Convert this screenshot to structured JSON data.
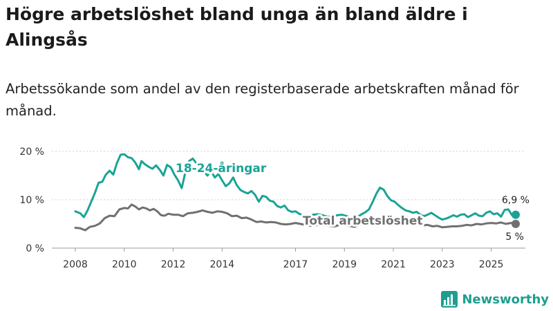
{
  "header": {
    "title": "Högre arbetslöshet bland unga än bland äldre i Alingsås",
    "subtitle": "Arbetssökande som andel av den registerbaserade arbetskraften månad för månad."
  },
  "brand": {
    "name": "Newsworthy",
    "icon": "bar-chart-logo-icon"
  },
  "colors": {
    "youth": "#1aa396",
    "total": "#707070",
    "grid": "#cfcfcf",
    "brand": "#1e9e8f"
  },
  "chart_data": {
    "type": "line",
    "title": "Högre arbetslöshet bland unga än bland äldre i Alingsås",
    "xlabel": "",
    "ylabel": "",
    "ylim": [
      0,
      20
    ],
    "xlim": [
      2007.8,
      2026.6
    ],
    "y_ticks": [
      {
        "value": 0,
        "label": "0 %"
      },
      {
        "value": 10,
        "label": "10 %"
      },
      {
        "value": 20,
        "label": "20 %"
      }
    ],
    "x_ticks": [
      {
        "value": 2008,
        "label": "2008"
      },
      {
        "value": 2010,
        "label": "2010"
      },
      {
        "value": 2012,
        "label": "2012"
      },
      {
        "value": 2014,
        "label": "2014"
      },
      {
        "value": 2017,
        "label": "2017"
      },
      {
        "value": 2019,
        "label": "2019"
      },
      {
        "value": 2021,
        "label": "2021"
      },
      {
        "value": 2023,
        "label": "2023"
      },
      {
        "value": 2025,
        "label": "2025"
      }
    ],
    "series": [
      {
        "name": "18-24-åringar",
        "label": "18-24-åringar",
        "color": "#1aa396",
        "end_label": "6,9 %",
        "points": [
          [
            2008.0,
            7.6
          ],
          [
            2008.2,
            7.2
          ],
          [
            2008.35,
            6.4
          ],
          [
            2008.5,
            7.8
          ],
          [
            2008.65,
            9.6
          ],
          [
            2008.8,
            11.4
          ],
          [
            2008.95,
            13.5
          ],
          [
            2009.1,
            13.7
          ],
          [
            2009.25,
            15.2
          ],
          [
            2009.4,
            16.0
          ],
          [
            2009.55,
            15.2
          ],
          [
            2009.7,
            17.6
          ],
          [
            2009.85,
            19.3
          ],
          [
            2010.0,
            19.4
          ],
          [
            2010.15,
            18.8
          ],
          [
            2010.3,
            18.6
          ],
          [
            2010.45,
            17.7
          ],
          [
            2010.6,
            16.3
          ],
          [
            2010.7,
            18.0
          ],
          [
            2010.85,
            17.3
          ],
          [
            2011.0,
            16.8
          ],
          [
            2011.15,
            16.4
          ],
          [
            2011.3,
            17.1
          ],
          [
            2011.45,
            16.2
          ],
          [
            2011.6,
            15.0
          ],
          [
            2011.75,
            17.2
          ],
          [
            2011.9,
            16.7
          ],
          [
            2012.05,
            15.2
          ],
          [
            2012.2,
            14.0
          ],
          [
            2012.35,
            12.4
          ],
          [
            2012.5,
            15.8
          ],
          [
            2012.65,
            18.0
          ],
          [
            2012.8,
            18.5
          ],
          [
            2012.95,
            17.5
          ],
          [
            2013.1,
            16.3
          ],
          [
            2013.25,
            15.8
          ],
          [
            2013.4,
            15.0
          ],
          [
            2013.55,
            15.9
          ],
          [
            2013.7,
            14.6
          ],
          [
            2013.85,
            15.3
          ],
          [
            2014.0,
            14.0
          ],
          [
            2014.15,
            12.8
          ],
          [
            2014.3,
            13.4
          ],
          [
            2014.45,
            14.6
          ],
          [
            2014.6,
            13.0
          ],
          [
            2014.75,
            12.0
          ],
          [
            2014.9,
            11.6
          ],
          [
            2015.05,
            11.3
          ],
          [
            2015.2,
            11.8
          ],
          [
            2015.35,
            11.0
          ],
          [
            2015.5,
            9.6
          ],
          [
            2015.65,
            10.8
          ],
          [
            2015.8,
            10.6
          ],
          [
            2015.95,
            9.8
          ],
          [
            2016.1,
            9.6
          ],
          [
            2016.25,
            8.7
          ],
          [
            2016.4,
            8.4
          ],
          [
            2016.55,
            8.8
          ],
          [
            2016.7,
            7.8
          ],
          [
            2016.85,
            7.5
          ],
          [
            2017.0,
            7.6
          ],
          [
            2017.15,
            7.1
          ],
          [
            2017.3,
            6.8
          ],
          [
            2017.5,
            6.5
          ],
          [
            2017.7,
            6.9
          ],
          [
            2017.9,
            7.0
          ],
          [
            2018.1,
            6.8
          ],
          [
            2018.3,
            6.5
          ],
          [
            2018.5,
            6.4
          ],
          [
            2018.7,
            6.8
          ],
          [
            2018.9,
            6.9
          ],
          [
            2019.1,
            6.6
          ],
          [
            2019.3,
            6.2
          ],
          [
            2019.5,
            6.3
          ],
          [
            2019.7,
            7.0
          ],
          [
            2019.85,
            7.4
          ],
          [
            2020.0,
            8.0
          ],
          [
            2020.15,
            9.5
          ],
          [
            2020.3,
            11.2
          ],
          [
            2020.45,
            12.5
          ],
          [
            2020.6,
            12.1
          ],
          [
            2020.75,
            10.8
          ],
          [
            2020.9,
            9.9
          ],
          [
            2021.05,
            9.6
          ],
          [
            2021.2,
            8.9
          ],
          [
            2021.35,
            8.3
          ],
          [
            2021.5,
            7.8
          ],
          [
            2021.65,
            7.6
          ],
          [
            2021.8,
            7.3
          ],
          [
            2021.95,
            7.5
          ],
          [
            2022.1,
            6.9
          ],
          [
            2022.25,
            6.6
          ],
          [
            2022.4,
            6.9
          ],
          [
            2022.55,
            7.3
          ],
          [
            2022.7,
            6.8
          ],
          [
            2022.85,
            6.3
          ],
          [
            2023.0,
            5.9
          ],
          [
            2023.15,
            6.1
          ],
          [
            2023.3,
            6.4
          ],
          [
            2023.45,
            6.8
          ],
          [
            2023.6,
            6.5
          ],
          [
            2023.75,
            6.9
          ],
          [
            2023.9,
            7.0
          ],
          [
            2024.05,
            6.4
          ],
          [
            2024.2,
            6.8
          ],
          [
            2024.35,
            7.2
          ],
          [
            2024.5,
            6.7
          ],
          [
            2024.65,
            6.6
          ],
          [
            2024.8,
            7.3
          ],
          [
            2024.95,
            7.6
          ],
          [
            2025.1,
            7.0
          ],
          [
            2025.25,
            7.2
          ],
          [
            2025.4,
            6.5
          ],
          [
            2025.55,
            7.9
          ],
          [
            2025.7,
            8.0
          ],
          [
            2025.85,
            6.8
          ],
          [
            2026.0,
            6.9
          ]
        ]
      },
      {
        "name": "Total arbetslöshet",
        "label": "Total arbetslöshet",
        "color": "#707070",
        "end_label": "5 %",
        "points": [
          [
            2008.0,
            4.2
          ],
          [
            2008.2,
            4.1
          ],
          [
            2008.4,
            3.7
          ],
          [
            2008.6,
            4.4
          ],
          [
            2008.8,
            4.6
          ],
          [
            2009.0,
            5.1
          ],
          [
            2009.2,
            6.2
          ],
          [
            2009.4,
            6.7
          ],
          [
            2009.6,
            6.6
          ],
          [
            2009.8,
            8.0
          ],
          [
            2010.0,
            8.3
          ],
          [
            2010.15,
            8.2
          ],
          [
            2010.3,
            9.0
          ],
          [
            2010.45,
            8.6
          ],
          [
            2010.6,
            8.0
          ],
          [
            2010.75,
            8.4
          ],
          [
            2010.9,
            8.2
          ],
          [
            2011.05,
            7.8
          ],
          [
            2011.2,
            8.1
          ],
          [
            2011.35,
            7.6
          ],
          [
            2011.5,
            6.8
          ],
          [
            2011.65,
            6.7
          ],
          [
            2011.8,
            7.1
          ],
          [
            2012.0,
            6.9
          ],
          [
            2012.2,
            6.9
          ],
          [
            2012.4,
            6.6
          ],
          [
            2012.6,
            7.2
          ],
          [
            2012.8,
            7.3
          ],
          [
            2013.0,
            7.5
          ],
          [
            2013.2,
            7.8
          ],
          [
            2013.4,
            7.5
          ],
          [
            2013.6,
            7.3
          ],
          [
            2013.8,
            7.6
          ],
          [
            2014.0,
            7.5
          ],
          [
            2014.2,
            7.2
          ],
          [
            2014.4,
            6.6
          ],
          [
            2014.6,
            6.7
          ],
          [
            2014.8,
            6.2
          ],
          [
            2015.0,
            6.3
          ],
          [
            2015.2,
            5.9
          ],
          [
            2015.4,
            5.4
          ],
          [
            2015.6,
            5.5
          ],
          [
            2015.8,
            5.3
          ],
          [
            2016.0,
            5.4
          ],
          [
            2016.2,
            5.3
          ],
          [
            2016.4,
            5.0
          ],
          [
            2016.6,
            4.9
          ],
          [
            2016.8,
            5.0
          ],
          [
            2017.0,
            5.2
          ],
          [
            2017.2,
            5.0
          ],
          [
            2017.4,
            4.8
          ],
          [
            2017.6,
            4.6
          ],
          [
            2017.8,
            4.7
          ],
          [
            2018.0,
            4.9
          ],
          [
            2018.2,
            4.7
          ],
          [
            2018.4,
            4.6
          ],
          [
            2018.6,
            4.5
          ],
          [
            2018.8,
            4.8
          ],
          [
            2019.0,
            4.7
          ],
          [
            2019.2,
            4.6
          ],
          [
            2019.4,
            4.4
          ],
          [
            2019.6,
            4.8
          ],
          [
            2019.8,
            5.0
          ],
          [
            2020.0,
            5.4
          ],
          [
            2020.2,
            6.0
          ],
          [
            2020.4,
            6.3
          ],
          [
            2020.6,
            5.9
          ],
          [
            2020.8,
            5.6
          ],
          [
            2021.0,
            5.4
          ],
          [
            2021.2,
            5.1
          ],
          [
            2021.4,
            5.2
          ],
          [
            2021.6,
            5.0
          ],
          [
            2021.8,
            4.9
          ],
          [
            2022.0,
            4.8
          ],
          [
            2022.2,
            4.7
          ],
          [
            2022.4,
            4.8
          ],
          [
            2022.6,
            4.5
          ],
          [
            2022.8,
            4.6
          ],
          [
            2023.0,
            4.3
          ],
          [
            2023.2,
            4.4
          ],
          [
            2023.4,
            4.5
          ],
          [
            2023.6,
            4.5
          ],
          [
            2023.8,
            4.6
          ],
          [
            2024.0,
            4.8
          ],
          [
            2024.2,
            4.7
          ],
          [
            2024.4,
            5.0
          ],
          [
            2024.6,
            4.9
          ],
          [
            2024.8,
            5.1
          ],
          [
            2025.0,
            5.2
          ],
          [
            2025.2,
            5.1
          ],
          [
            2025.4,
            5.3
          ],
          [
            2025.6,
            5.0
          ],
          [
            2025.8,
            5.2
          ],
          [
            2026.0,
            5.0
          ]
        ]
      }
    ]
  }
}
